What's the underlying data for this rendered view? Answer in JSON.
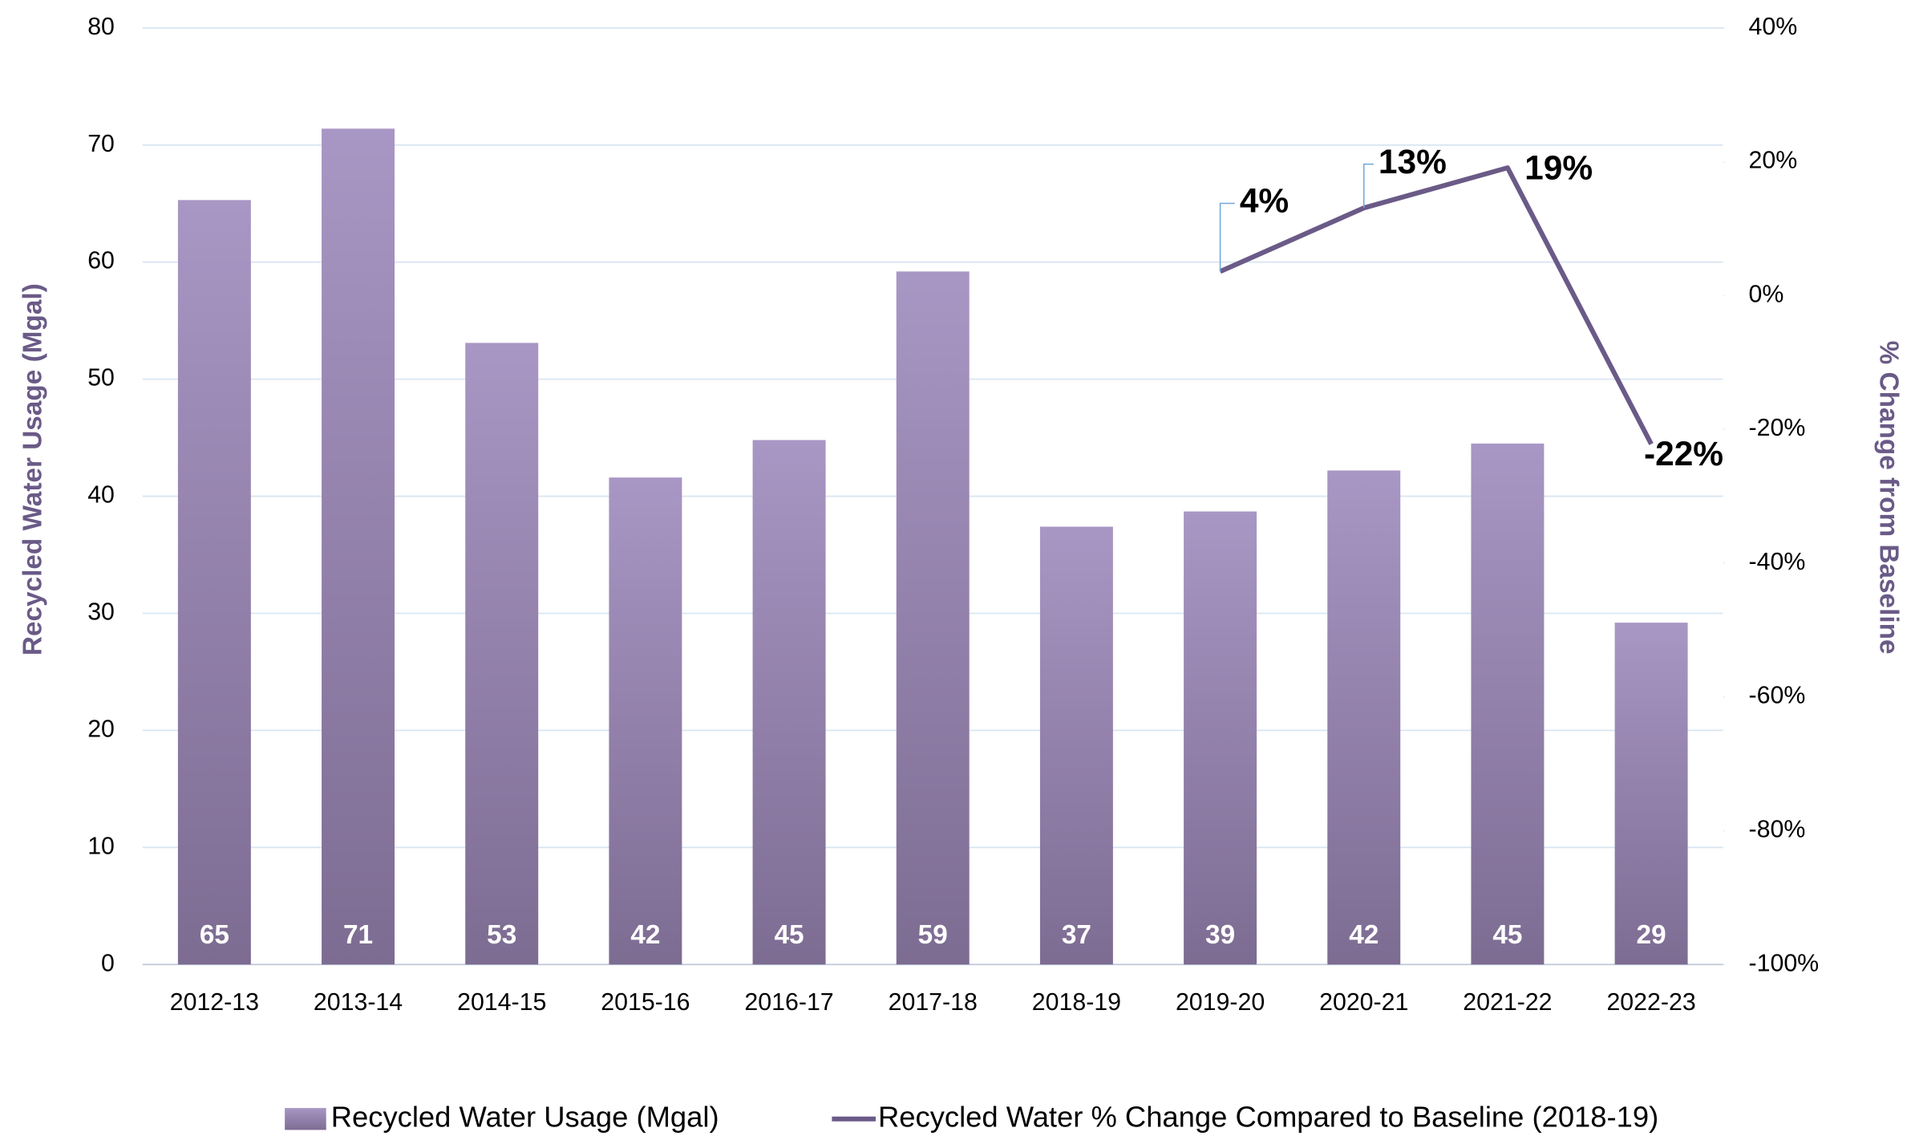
{
  "chart_data": {
    "type": "bar-line",
    "categories": [
      "2012-13",
      "2013-14",
      "2014-15",
      "2015-16",
      "2016-17",
      "2017-18",
      "2018-19",
      "2019-20",
      "2020-21",
      "2021-22",
      "2022-23"
    ],
    "series": [
      {
        "name": "Recycled Water Usage (Mgal)",
        "type": "bar",
        "color": "#9686ad",
        "values": [
          65.3,
          71.4,
          53.1,
          41.6,
          44.8,
          59.2,
          37.4,
          38.7,
          42.2,
          44.5,
          29.2
        ],
        "value_labels": [
          "65",
          "71",
          "53",
          "42",
          "45",
          "59",
          "37",
          "39",
          "42",
          "45",
          "29"
        ]
      },
      {
        "name": "Recycled Water % Change Compared to Baseline (2018-19)",
        "type": "line",
        "axis": "y2",
        "color": "#6a5a87",
        "values": [
          null,
          null,
          null,
          null,
          null,
          null,
          null,
          3.6,
          13.1,
          19.1,
          -22.2
        ],
        "value_labels": [
          null,
          null,
          null,
          null,
          null,
          null,
          null,
          "4%",
          "13%",
          "19%",
          "-22%"
        ]
      }
    ],
    "y_label": "Recycled Water Usage (Mgal)",
    "y2_label": "% Change from Baseline",
    "ylim": [
      0,
      80
    ],
    "yticks": [
      0,
      10,
      20,
      30,
      40,
      50,
      60,
      70,
      80
    ],
    "y2lim": [
      -100,
      40
    ],
    "y2ticks": [
      {
        "value": -100,
        "label": "-100%"
      },
      {
        "value": -80,
        "label": "-80%"
      },
      {
        "value": -60,
        "label": "-60%"
      },
      {
        "value": -40,
        "label": "-40%"
      },
      {
        "value": -20,
        "label": "-20%"
      },
      {
        "value": 0,
        "label": "0%"
      },
      {
        "value": 20,
        "label": "20%"
      },
      {
        "value": 40,
        "label": "40%"
      }
    ],
    "grid": true,
    "legend": "bottom"
  }
}
